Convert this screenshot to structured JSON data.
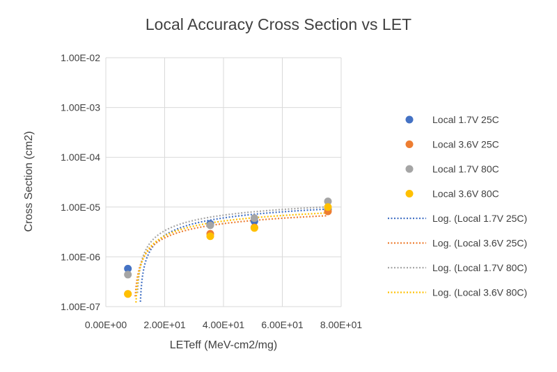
{
  "chart_data": {
    "type": "scatter",
    "title": "Local Accuracy Cross Section vs LET",
    "xlabel": "LETeff (MeV-cm2/mg)",
    "ylabel": "Cross Section (cm2)",
    "xlim": [
      0,
      80
    ],
    "ylim_log10": [
      -7,
      -2
    ],
    "y_scale": "log",
    "grid": true,
    "legend_position": "right",
    "x_tick_values": [
      0,
      20,
      40,
      60,
      80
    ],
    "x_tick_labels": [
      "0.00E+00",
      "2.00E+01",
      "4.00E+01",
      "6.00E+01",
      "8.00E+01"
    ],
    "y_tick_exponents": [
      -7,
      -6,
      -5,
      -4,
      -3,
      -2
    ],
    "y_tick_labels": [
      "1.00E-07",
      "1.00E-06",
      "1.00E-05",
      "1.00E-04",
      "1.00E-03",
      "1.00E-02"
    ],
    "series": [
      {
        "name": "Local 1.7V 25C",
        "color": "#4472C4",
        "x": [
          7.5,
          35.5,
          50.5,
          75.5
        ],
        "y": [
          5.8e-07,
          4.6e-06,
          5.2e-06,
          9e-06
        ]
      },
      {
        "name": "Local 3.6V 25C",
        "color": "#ED7D31",
        "x": [
          7.5,
          35.5,
          50.5,
          75.5
        ],
        "y": [
          1.8e-07,
          2.9e-06,
          3.9e-06,
          8.2e-06
        ]
      },
      {
        "name": "Local 1.7V 80C",
        "color": "#A5A5A5",
        "x": [
          7.5,
          35.5,
          50.5,
          75.5
        ],
        "y": [
          4.4e-07,
          4.3e-06,
          6e-06,
          1.3e-05
        ]
      },
      {
        "name": "Local 3.6V 80C",
        "color": "#FFC000",
        "x": [
          7.5,
          35.5,
          50.5,
          75.5
        ],
        "y": [
          1.8e-07,
          2.6e-06,
          3.8e-06,
          1e-05
        ]
      }
    ],
    "trendlines": [
      {
        "name": "Log. (Local 1.7V 25C)",
        "color": "#4472C4",
        "type": "log",
        "a": 4.84e-06,
        "b": -1.18e-05
      },
      {
        "name": "Log. (Local 3.6V 25C)",
        "color": "#ED7D31",
        "type": "log",
        "a": 3.24e-06,
        "b": -7.3e-06
      },
      {
        "name": "Log. (Local 1.7V 80C)",
        "color": "#A5A5A5",
        "type": "log",
        "a": 5.09e-06,
        "b": -1.19e-05
      },
      {
        "name": "Log. (Local 3.6V 80C)",
        "color": "#FFC000",
        "type": "log",
        "a": 3.76e-06,
        "b": -8.63e-06
      }
    ]
  }
}
